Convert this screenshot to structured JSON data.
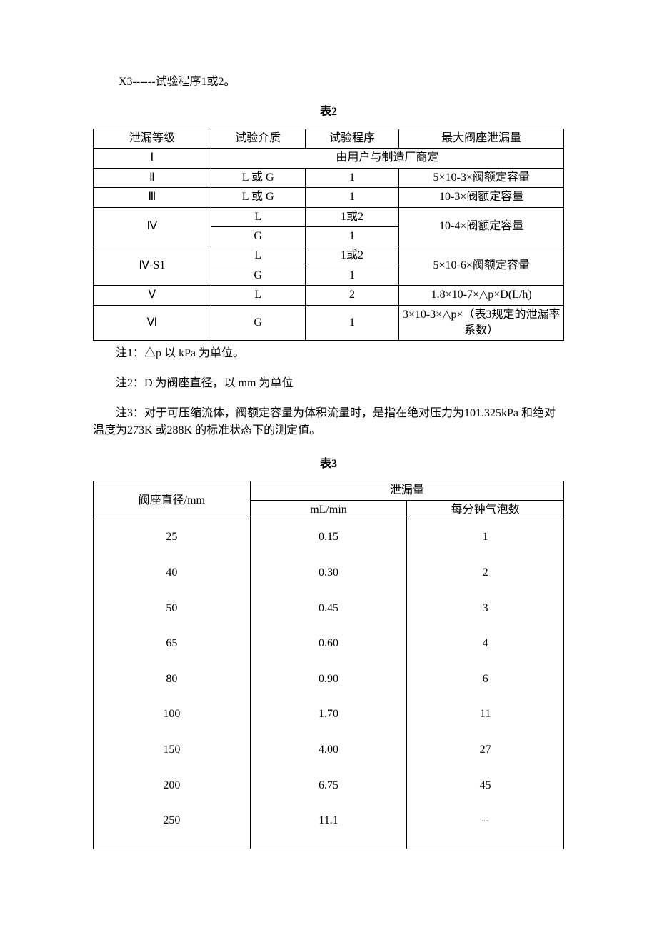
{
  "intro": "X3------试验程序1或2。",
  "table2": {
    "caption": "表2",
    "headers": [
      "泄漏等级",
      "试验介质",
      "试验程序",
      "最大阀座泄漏量"
    ],
    "row_I": {
      "grade": "Ⅰ",
      "merged": "由用户与制造厂商定"
    },
    "row_II": {
      "grade": "Ⅱ",
      "medium": "L 或 G",
      "proc": "1",
      "leak": "5×10-3×阀额定容量"
    },
    "row_III": {
      "grade": "Ⅲ",
      "medium": "L 或 G",
      "proc": "1",
      "leak": "10-3×阀额定容量"
    },
    "row_IV": {
      "grade": "Ⅳ",
      "r1": {
        "medium": "L",
        "proc": "1或2"
      },
      "r2": {
        "medium": "G",
        "proc": "1"
      },
      "leak": "10-4×阀额定容量"
    },
    "row_IVS1": {
      "grade": "Ⅳ-S1",
      "r1": {
        "medium": "L",
        "proc": "1或2"
      },
      "r2": {
        "medium": "G",
        "proc": "1"
      },
      "leak": "5×10-6×阀额定容量"
    },
    "row_V": {
      "grade": "Ⅴ",
      "medium": "L",
      "proc": "2",
      "leak": "1.8×10-7×△p×D(L/h)"
    },
    "row_VI": {
      "grade": "Ⅵ",
      "medium": "G",
      "proc": "1",
      "leak": "3×10-3×△p×（表3规定的泄漏率系数）"
    }
  },
  "notes": {
    "n1": "注1：△p 以 kPa 为单位。",
    "n2": "注2：D 为阀座直径，以 mm 为单位",
    "n3": "注3：对于可压缩流体，阀额定容量为体积流量时，是指在绝对压力为101.325kPa 和绝对温度为273K 或288K 的标准状态下的测定值。"
  },
  "table3": {
    "caption": "表3",
    "header_diam": "阀座直径/mm",
    "header_leak": "泄漏量",
    "header_ml": "mL/min",
    "header_bubble": "每分钟气泡数",
    "rows": [
      {
        "d": "25",
        "ml": "0.15",
        "b": "1"
      },
      {
        "d": "40",
        "ml": "0.30",
        "b": "2"
      },
      {
        "d": "50",
        "ml": "0.45",
        "b": "3"
      },
      {
        "d": "65",
        "ml": "0.60",
        "b": "4"
      },
      {
        "d": "80",
        "ml": "0.90",
        "b": "6"
      },
      {
        "d": "100",
        "ml": "1.70",
        "b": "11"
      },
      {
        "d": "150",
        "ml": "4.00",
        "b": "27"
      },
      {
        "d": "200",
        "ml": "6.75",
        "b": "45"
      },
      {
        "d": "250",
        "ml": "11.1",
        "b": "--"
      }
    ]
  }
}
